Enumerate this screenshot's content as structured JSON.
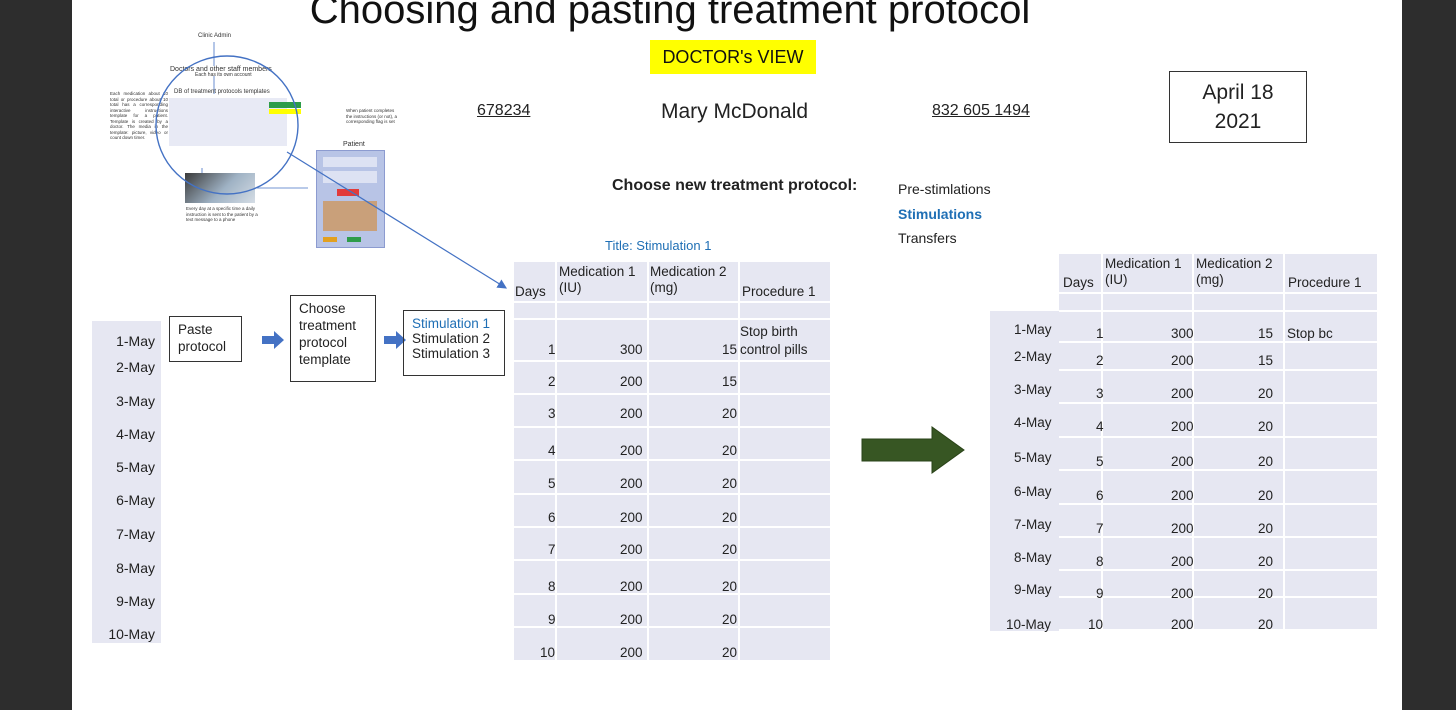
{
  "slide": {
    "title": "Choosing and pasting treatment protocol",
    "view_badge": "DOCTOR's VIEW"
  },
  "patient": {
    "id": "678234",
    "name": "Mary McDonald",
    "phone": "832 605 1494"
  },
  "date": {
    "line1": "April 18",
    "line2": "2021"
  },
  "choose": {
    "label": "Choose new treatment protocol:",
    "options": [
      "Pre-stimlations",
      "Stimulations",
      "Transfers"
    ],
    "selected": "Stimulations"
  },
  "thumbnail": {
    "clinic_admin": "Clinic Admin",
    "doctors": "Doctors and other staff members",
    "each_account": "Each has its own account",
    "db_title": "DB of treatment protocols templates",
    "left_note": "Each medication about 10 total or procedure about 10 total has a corresponding interactive instructions template for a patient. Template is created by a doctor. The media in the template: picture, video or count down timer.",
    "right_note": "When patient completes the instructions (or not), a corresponding flag is set",
    "patient": "Patient",
    "bottom_note": "Every day at a specific time a daily instruction is sent to the patient by a text message to a phone"
  },
  "steps": {
    "paste": "Paste protocol",
    "choose_template": "Choose treatment protocol template",
    "templates": [
      "Stimulation 1",
      "Stimulation 2",
      "Stimulation 3"
    ]
  },
  "dates": [
    "1-May",
    "2-May",
    "3-May",
    "4-May",
    "5-May",
    "6-May",
    "7-May",
    "8-May",
    "9-May",
    "10-May"
  ],
  "template_table": {
    "title": "Title: Stimulation 1",
    "headers": {
      "days": "Days",
      "med1": "Medication  1 (IU)",
      "med2": "Medication 2 (mg)",
      "proc": "Procedure 1"
    },
    "rows": [
      {
        "day": "1",
        "med1": "300",
        "med2": "15",
        "proc": "Stop birth control pills"
      },
      {
        "day": "2",
        "med1": "200",
        "med2": "15",
        "proc": ""
      },
      {
        "day": "3",
        "med1": "200",
        "med2": "20",
        "proc": ""
      },
      {
        "day": "4",
        "med1": "200",
        "med2": "20",
        "proc": ""
      },
      {
        "day": "5",
        "med1": "200",
        "med2": "20",
        "proc": ""
      },
      {
        "day": "6",
        "med1": "200",
        "med2": "20",
        "proc": ""
      },
      {
        "day": "7",
        "med1": "200",
        "med2": "20",
        "proc": ""
      },
      {
        "day": "8",
        "med1": "200",
        "med2": "20",
        "proc": ""
      },
      {
        "day": "9",
        "med1": "200",
        "med2": "20",
        "proc": ""
      },
      {
        "day": "10",
        "med1": "200",
        "med2": "20",
        "proc": ""
      }
    ]
  },
  "result_table": {
    "headers": {
      "days": "Days",
      "med1": "Medication  1 (IU)",
      "med2": "Medication 2 (mg)",
      "proc": "Procedure 1"
    },
    "rows": [
      {
        "date": "1-May",
        "day": "1",
        "med1": "300",
        "med2": "15",
        "proc": "Stop bc"
      },
      {
        "date": "2-May",
        "day": "2",
        "med1": "200",
        "med2": "15",
        "proc": ""
      },
      {
        "date": "3-May",
        "day": "3",
        "med1": "200",
        "med2": "20",
        "proc": ""
      },
      {
        "date": "4-May",
        "day": "4",
        "med1": "200",
        "med2": "20",
        "proc": ""
      },
      {
        "date": "5-May",
        "day": "5",
        "med1": "200",
        "med2": "20",
        "proc": ""
      },
      {
        "date": "6-May",
        "day": "6",
        "med1": "200",
        "med2": "20",
        "proc": ""
      },
      {
        "date": "7-May",
        "day": "7",
        "med1": "200",
        "med2": "20",
        "proc": ""
      },
      {
        "date": "8-May",
        "day": "8",
        "med1": "200",
        "med2": "20",
        "proc": ""
      },
      {
        "date": "9-May",
        "day": "9",
        "med1": "200",
        "med2": "20",
        "proc": ""
      },
      {
        "date": "10-May",
        "day": "10",
        "med1": "200",
        "med2": "20",
        "proc": ""
      }
    ]
  },
  "colors": {
    "accent_blue": "#1f6fb5",
    "badge_yellow": "#ffff00",
    "table_fill": "#e6e7f2",
    "big_arrow": "#375623",
    "step_arrow": "#4472c4"
  }
}
